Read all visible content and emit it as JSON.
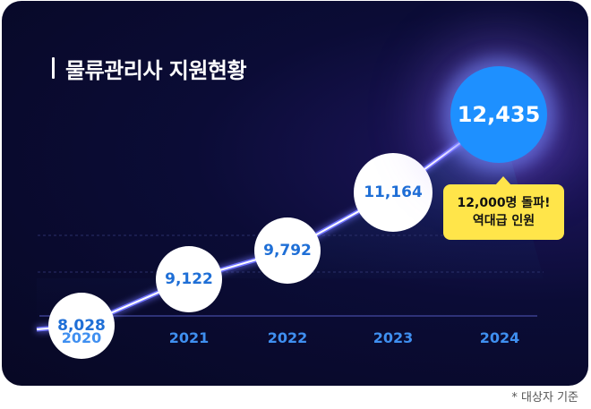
{
  "title": "물류관리사 지원현황",
  "chart_data": {
    "type": "line",
    "title": "물류관리사 지원현황",
    "categories": [
      "2020",
      "2021",
      "2022",
      "2023",
      "2024"
    ],
    "values": [
      8028,
      9122,
      9792,
      11164,
      12435
    ],
    "value_labels": [
      "8,028",
      "9,122",
      "9,792",
      "11,164",
      "12,435"
    ],
    "highlight_index": 4,
    "ylim": [
      0,
      15000
    ],
    "grid": false
  },
  "callout": {
    "line1": "12,000명 돌파!",
    "line2": "역대급 인원"
  },
  "footnote": "* 대상자 기준",
  "colors": {
    "background": "#0b0c36",
    "line_glow": "#6f73ff",
    "highlight_bubble": "#1e90ff",
    "value_text": "#1f6fd6",
    "year_text": "#3f8ff0",
    "callout_bg": "#ffe54a"
  }
}
